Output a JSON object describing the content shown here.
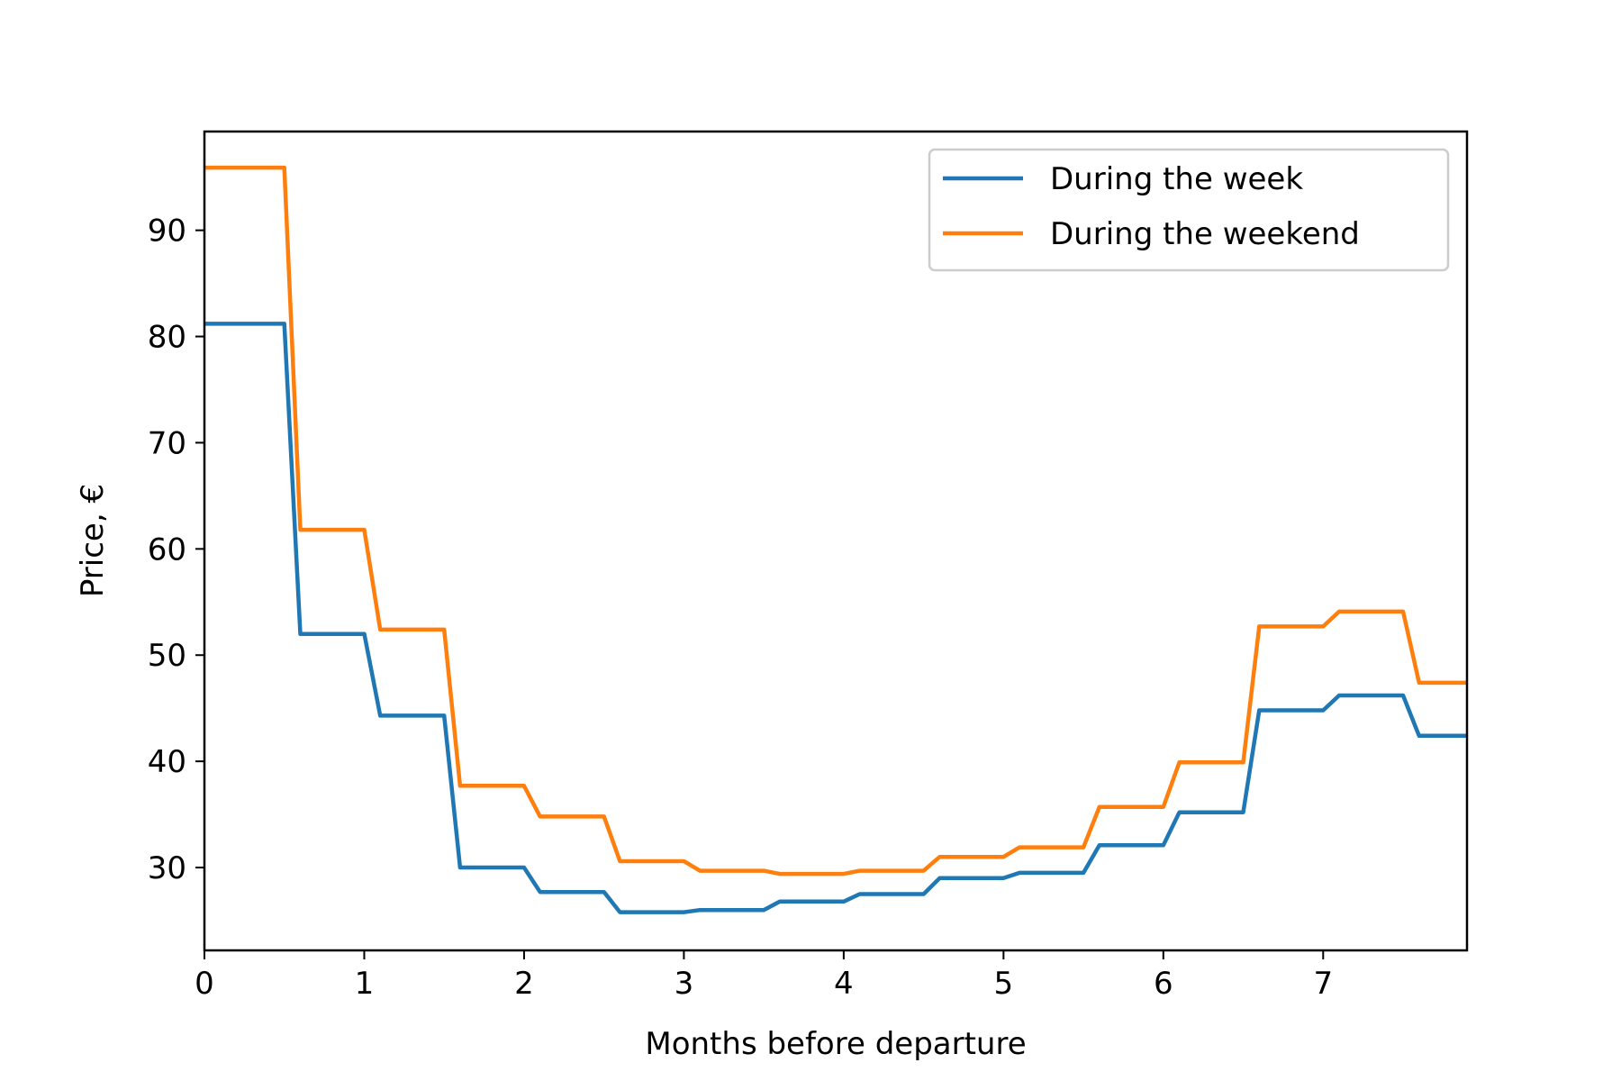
{
  "chart_data": {
    "type": "line",
    "title": "",
    "xlabel": "Months before departure",
    "ylabel": "Price, €",
    "xlim": [
      0,
      7.9
    ],
    "ylim": [
      22.2,
      99.3
    ],
    "xticks": [
      0,
      1,
      2,
      3,
      4,
      5,
      6,
      7
    ],
    "yticks": [
      30,
      40,
      50,
      60,
      70,
      80,
      90
    ],
    "grid": false,
    "legend_position": "top-right",
    "x": [
      0,
      0.5,
      0.6,
      1.0,
      1.1,
      1.5,
      1.6,
      2.0,
      2.1,
      2.5,
      2.6,
      3.0,
      3.1,
      3.5,
      3.6,
      4.0,
      4.1,
      4.5,
      4.6,
      5.0,
      5.1,
      5.5,
      5.6,
      6.0,
      6.1,
      6.5,
      6.6,
      7.0,
      7.1,
      7.5,
      7.6,
      7.9
    ],
    "series": [
      {
        "name": "During the week",
        "color": "#1f77b4",
        "values": [
          81.2,
          81.2,
          52.0,
          52.0,
          44.3,
          44.3,
          30.0,
          30.0,
          27.7,
          27.7,
          25.8,
          25.8,
          26.0,
          26.0,
          26.8,
          26.8,
          27.5,
          27.5,
          29.0,
          29.0,
          29.5,
          29.5,
          32.1,
          32.1,
          35.2,
          35.2,
          44.8,
          44.8,
          46.2,
          46.2,
          42.4,
          42.4
        ]
      },
      {
        "name": "During the weekend",
        "color": "#ff7f0e",
        "values": [
          95.9,
          95.9,
          61.8,
          61.8,
          52.4,
          52.4,
          37.7,
          37.7,
          34.8,
          34.8,
          30.6,
          30.6,
          29.7,
          29.7,
          29.4,
          29.4,
          29.7,
          29.7,
          31.0,
          31.0,
          31.9,
          31.9,
          35.7,
          35.7,
          39.9,
          39.9,
          52.7,
          52.7,
          54.1,
          54.1,
          47.4,
          47.4
        ]
      }
    ]
  }
}
